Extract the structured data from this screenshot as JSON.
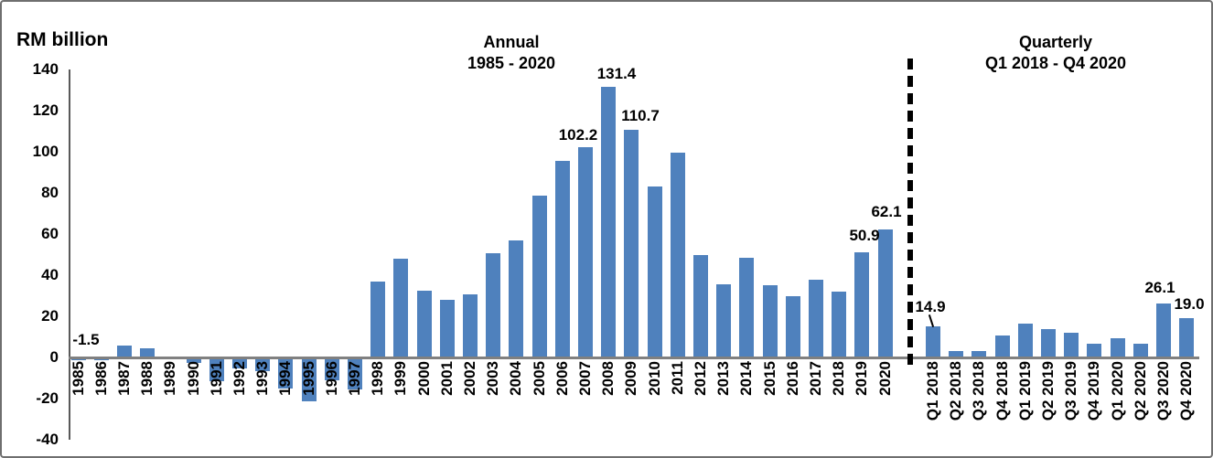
{
  "chart_data": {
    "type": "bar",
    "unit_label": "RM billion",
    "bar_color": "#4F81BD",
    "axis_color": "#808080",
    "grid": false,
    "legend": false,
    "y_axis": {
      "min": -40,
      "max": 140,
      "step": 20,
      "ticks": [
        140,
        120,
        100,
        80,
        60,
        40,
        20,
        0,
        -20,
        -40
      ]
    },
    "sections": [
      {
        "name": "annual",
        "title": "Annual",
        "subtitle": "1985 - 2020",
        "categories": [
          "1985",
          "1986",
          "1987",
          "1988",
          "1989",
          "1990",
          "1991",
          "1992",
          "1993",
          "1994",
          "1995",
          "1996",
          "1997",
          "1998",
          "1999",
          "2000",
          "2001",
          "2002",
          "2003",
          "2004",
          "2005",
          "2006",
          "2007",
          "2008",
          "2009",
          "2010",
          "2011",
          "2012",
          "2013",
          "2014",
          "2015",
          "2016",
          "2017",
          "2018",
          "2019",
          "2020"
        ],
        "values": [
          -1.5,
          -1.3,
          6,
          4.5,
          0,
          -2.5,
          -11.5,
          -5.5,
          -6.5,
          -15,
          -21.5,
          -11,
          -15.5,
          37,
          48,
          32.5,
          28,
          30.5,
          50.5,
          57,
          78.5,
          95.5,
          102.2,
          131.4,
          110.7,
          83,
          99.5,
          50,
          35.5,
          48.5,
          35,
          30,
          38,
          32,
          50.9,
          62.1
        ],
        "data_labels": {
          "1985": "-1.5",
          "2007": "102.2",
          "2008": "131.4",
          "2009": "110.7",
          "2019": "50.9",
          "2020": "62.1"
        }
      },
      {
        "name": "quarterly",
        "title": "Quarterly",
        "subtitle": "Q1 2018 - Q4 2020",
        "categories": [
          "Q1 2018",
          "Q2 2018",
          "Q3 2018",
          "Q4 2018",
          "Q1 2019",
          "Q2 2019",
          "Q3 2019",
          "Q4 2019",
          "Q1 2020",
          "Q2 2020",
          "Q3 2020",
          "Q4 2020"
        ],
        "values": [
          14.9,
          3.0,
          3.0,
          10.5,
          16.4,
          14.0,
          11.9,
          6.7,
          9.2,
          6.7,
          26.1,
          19.0
        ],
        "data_labels": {
          "Q1 2018": "14.9",
          "Q3 2020": "26.1",
          "Q4 2020": "19.0"
        }
      }
    ]
  }
}
